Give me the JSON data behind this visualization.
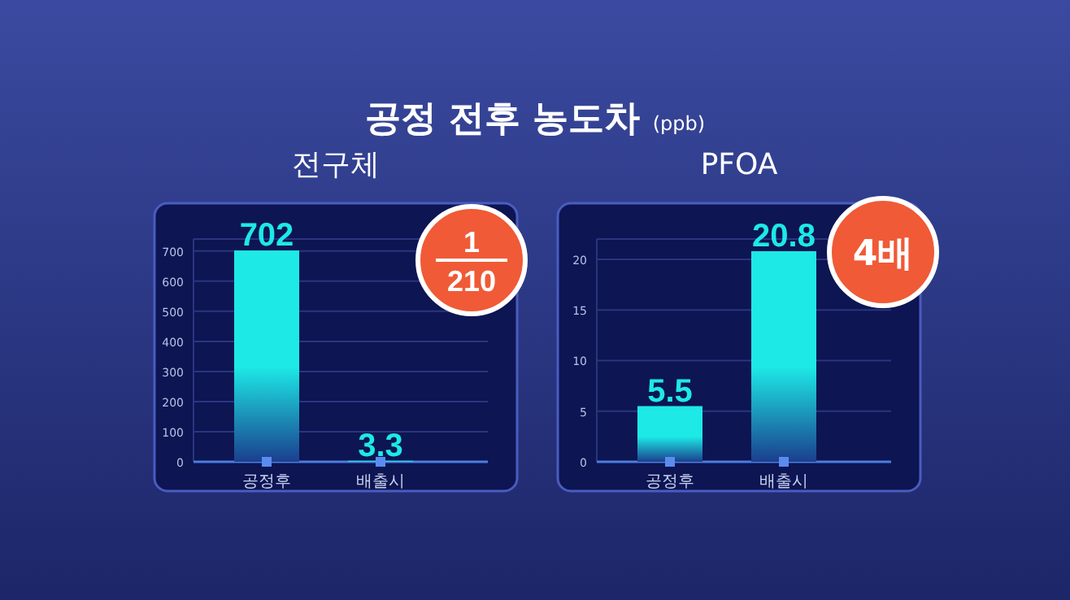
{
  "chart_data": [
    {
      "type": "bar",
      "title": "전구체",
      "categories": [
        "공정후",
        "배출시"
      ],
      "values": [
        702,
        3.3
      ],
      "color": "#1de9e6",
      "ylim": [
        0,
        740
      ],
      "yticks": [
        0,
        100,
        200,
        300,
        400,
        500,
        600,
        700
      ],
      "grid": "y",
      "data_labels": true,
      "annotations": [
        "공정 전후 농도차",
        "(ppb)",
        "1",
        "210"
      ]
    },
    {
      "type": "bar",
      "title": "PFOA",
      "categories": [
        "공정후",
        "배출시"
      ],
      "values": [
        5.5,
        20.8
      ],
      "color": "#1de9e6",
      "ylim": [
        0,
        22
      ],
      "yticks": [
        0,
        5,
        10,
        15,
        20
      ],
      "grid": "y",
      "data_labels": true,
      "annotations": [
        "4배"
      ]
    }
  ]
}
